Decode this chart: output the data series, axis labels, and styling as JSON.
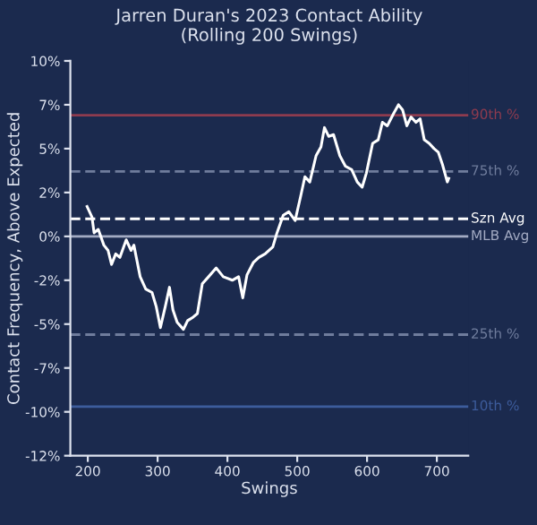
{
  "chart_data": {
    "type": "line",
    "title": "Jarren Duran's 2023 Contact Ability\n(Rolling 200 Swings)",
    "xlabel": "Swings",
    "ylabel": "Contact Frequency, Above Expected",
    "x": [
      199,
      206,
      209,
      215,
      223,
      229,
      234,
      240,
      246,
      255,
      262,
      266,
      275,
      283,
      292,
      298,
      304,
      311,
      317,
      322,
      328,
      337,
      343,
      351,
      357,
      364,
      373,
      384,
      394,
      407,
      416,
      422,
      428,
      437,
      445,
      454,
      465,
      471,
      480,
      488,
      497,
      505,
      511,
      518,
      527,
      534,
      539,
      545,
      552,
      561,
      569,
      578,
      586,
      593,
      599,
      608,
      616,
      622,
      629,
      638,
      645,
      651,
      657,
      663,
      670,
      676,
      682,
      689,
      696,
      702,
      708,
      715,
      717
    ],
    "series": [
      {
        "color": "#ffffff",
        "values": [
          1.7,
          1.1,
          0.2,
          0.4,
          -0.5,
          -0.8,
          -1.6,
          -1.0,
          -1.2,
          -0.2,
          -0.8,
          -0.5,
          -2.3,
          -3.0,
          -3.2,
          -4.0,
          -5.2,
          -4.0,
          -2.9,
          -4.2,
          -4.9,
          -5.3,
          -4.8,
          -4.6,
          -4.4,
          -2.7,
          -2.3,
          -1.8,
          -2.3,
          -2.5,
          -2.3,
          -3.5,
          -2.2,
          -1.5,
          -1.2,
          -1.0,
          -0.6,
          0.2,
          1.2,
          1.4,
          0.9,
          2.3,
          3.4,
          3.1,
          4.6,
          5.1,
          6.2,
          5.7,
          5.8,
          4.6,
          4.0,
          3.8,
          3.1,
          2.8,
          3.6,
          5.3,
          5.5,
          6.5,
          6.3,
          7.0,
          7.5,
          7.2,
          6.3,
          6.8,
          6.5,
          6.7,
          5.5,
          5.3,
          5.0,
          4.8,
          4.1,
          3.1,
          3.3
        ]
      }
    ],
    "xlim": [
      175,
      745
    ],
    "xticks": [
      200,
      300,
      400,
      500,
      600,
      700
    ],
    "ylim": [
      -12.5,
      10
    ],
    "yticks": [
      {
        "value": 10,
        "label": "10%"
      },
      {
        "value": 7.5,
        "label": "7%"
      },
      {
        "value": 5,
        "label": "5%"
      },
      {
        "value": 2.5,
        "label": "2%"
      },
      {
        "value": 0,
        "label": "0%"
      },
      {
        "value": -2.5,
        "label": "-2%"
      },
      {
        "value": -5,
        "label": "-5%"
      },
      {
        "value": -7.5,
        "label": "-7%"
      },
      {
        "value": -10,
        "label": "-10%"
      },
      {
        "value": -12.5,
        "label": "-12%"
      }
    ],
    "ref_lines": [
      {
        "axis": "y",
        "value": 6.9,
        "label": "90th %",
        "color": "#8e3b4f",
        "line_style": "solid"
      },
      {
        "axis": "y",
        "value": 3.7,
        "label": "75th %",
        "color": "#6f7c9c",
        "line_style": "dashed"
      },
      {
        "axis": "y",
        "value": 1.0,
        "label": "Szn Avg",
        "color": "#ffffff",
        "line_style": "dashed"
      },
      {
        "axis": "y",
        "value": 0,
        "label": "MLB Avg",
        "color": "#a3abc3",
        "line_style": "solid"
      },
      {
        "axis": "y",
        "value": -5.6,
        "label": "25th %",
        "color": "#6f7c9c",
        "line_style": "dashed"
      },
      {
        "axis": "y",
        "value": -9.7,
        "label": "10th %",
        "color": "#3d5c9c",
        "line_style": "solid"
      }
    ],
    "grid": false,
    "legend": false,
    "marker": "none",
    "line_style": "solid"
  }
}
